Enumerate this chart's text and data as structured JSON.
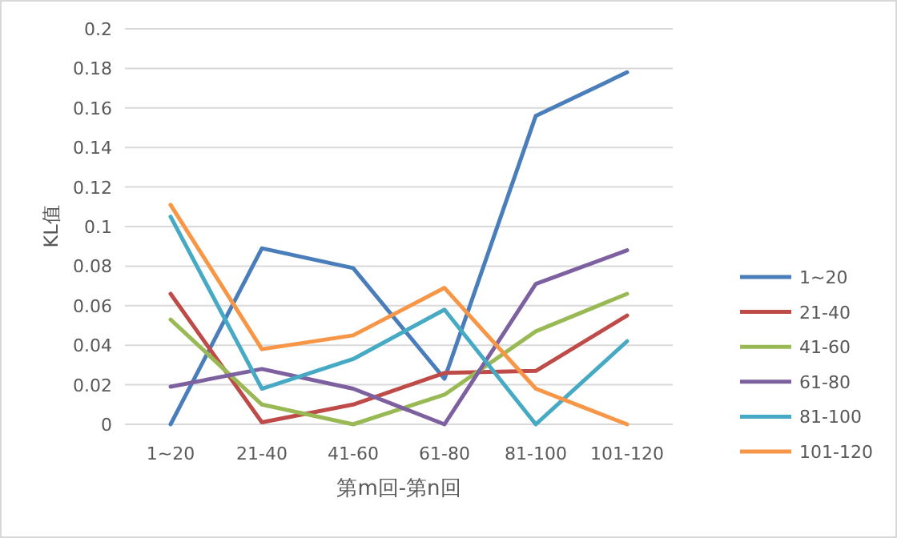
{
  "chart_data": {
    "type": "line",
    "xlabel": "第m回-第n回",
    "ylabel": "KL值",
    "categories": [
      "1~20",
      "21-40",
      "41-60",
      "61-80",
      "81-100",
      "101-120"
    ],
    "series": [
      {
        "name": "1~20",
        "color": "#4a7ebb",
        "values": [
          0,
          0.089,
          0.079,
          0.023,
          0.156,
          0.178
        ]
      },
      {
        "name": "21-40",
        "color": "#be4b48",
        "values": [
          0.066,
          0.001,
          0.01,
          0.026,
          0.027,
          0.055
        ]
      },
      {
        "name": "41-60",
        "color": "#98b954",
        "values": [
          0.053,
          0.01,
          0.0,
          0.015,
          0.047,
          0.066
        ]
      },
      {
        "name": "61-80",
        "color": "#7d60a0",
        "values": [
          0.019,
          0.028,
          0.018,
          0.0,
          0.071,
          0.088
        ]
      },
      {
        "name": "81-100",
        "color": "#46aac5",
        "values": [
          0.105,
          0.018,
          0.033,
          0.058,
          0.0,
          0.042
        ]
      },
      {
        "name": "101-120",
        "color": "#f79646",
        "values": [
          0.111,
          0.038,
          0.045,
          0.069,
          0.018,
          0.0
        ]
      }
    ],
    "ylim": [
      0,
      0.2
    ],
    "yticks": [
      0,
      0.02,
      0.04,
      0.06,
      0.08,
      0.1,
      0.12,
      0.14,
      0.16,
      0.18,
      0.2
    ],
    "grid": "y",
    "legend": "right",
    "marker": "none",
    "line_style": "solid"
  }
}
